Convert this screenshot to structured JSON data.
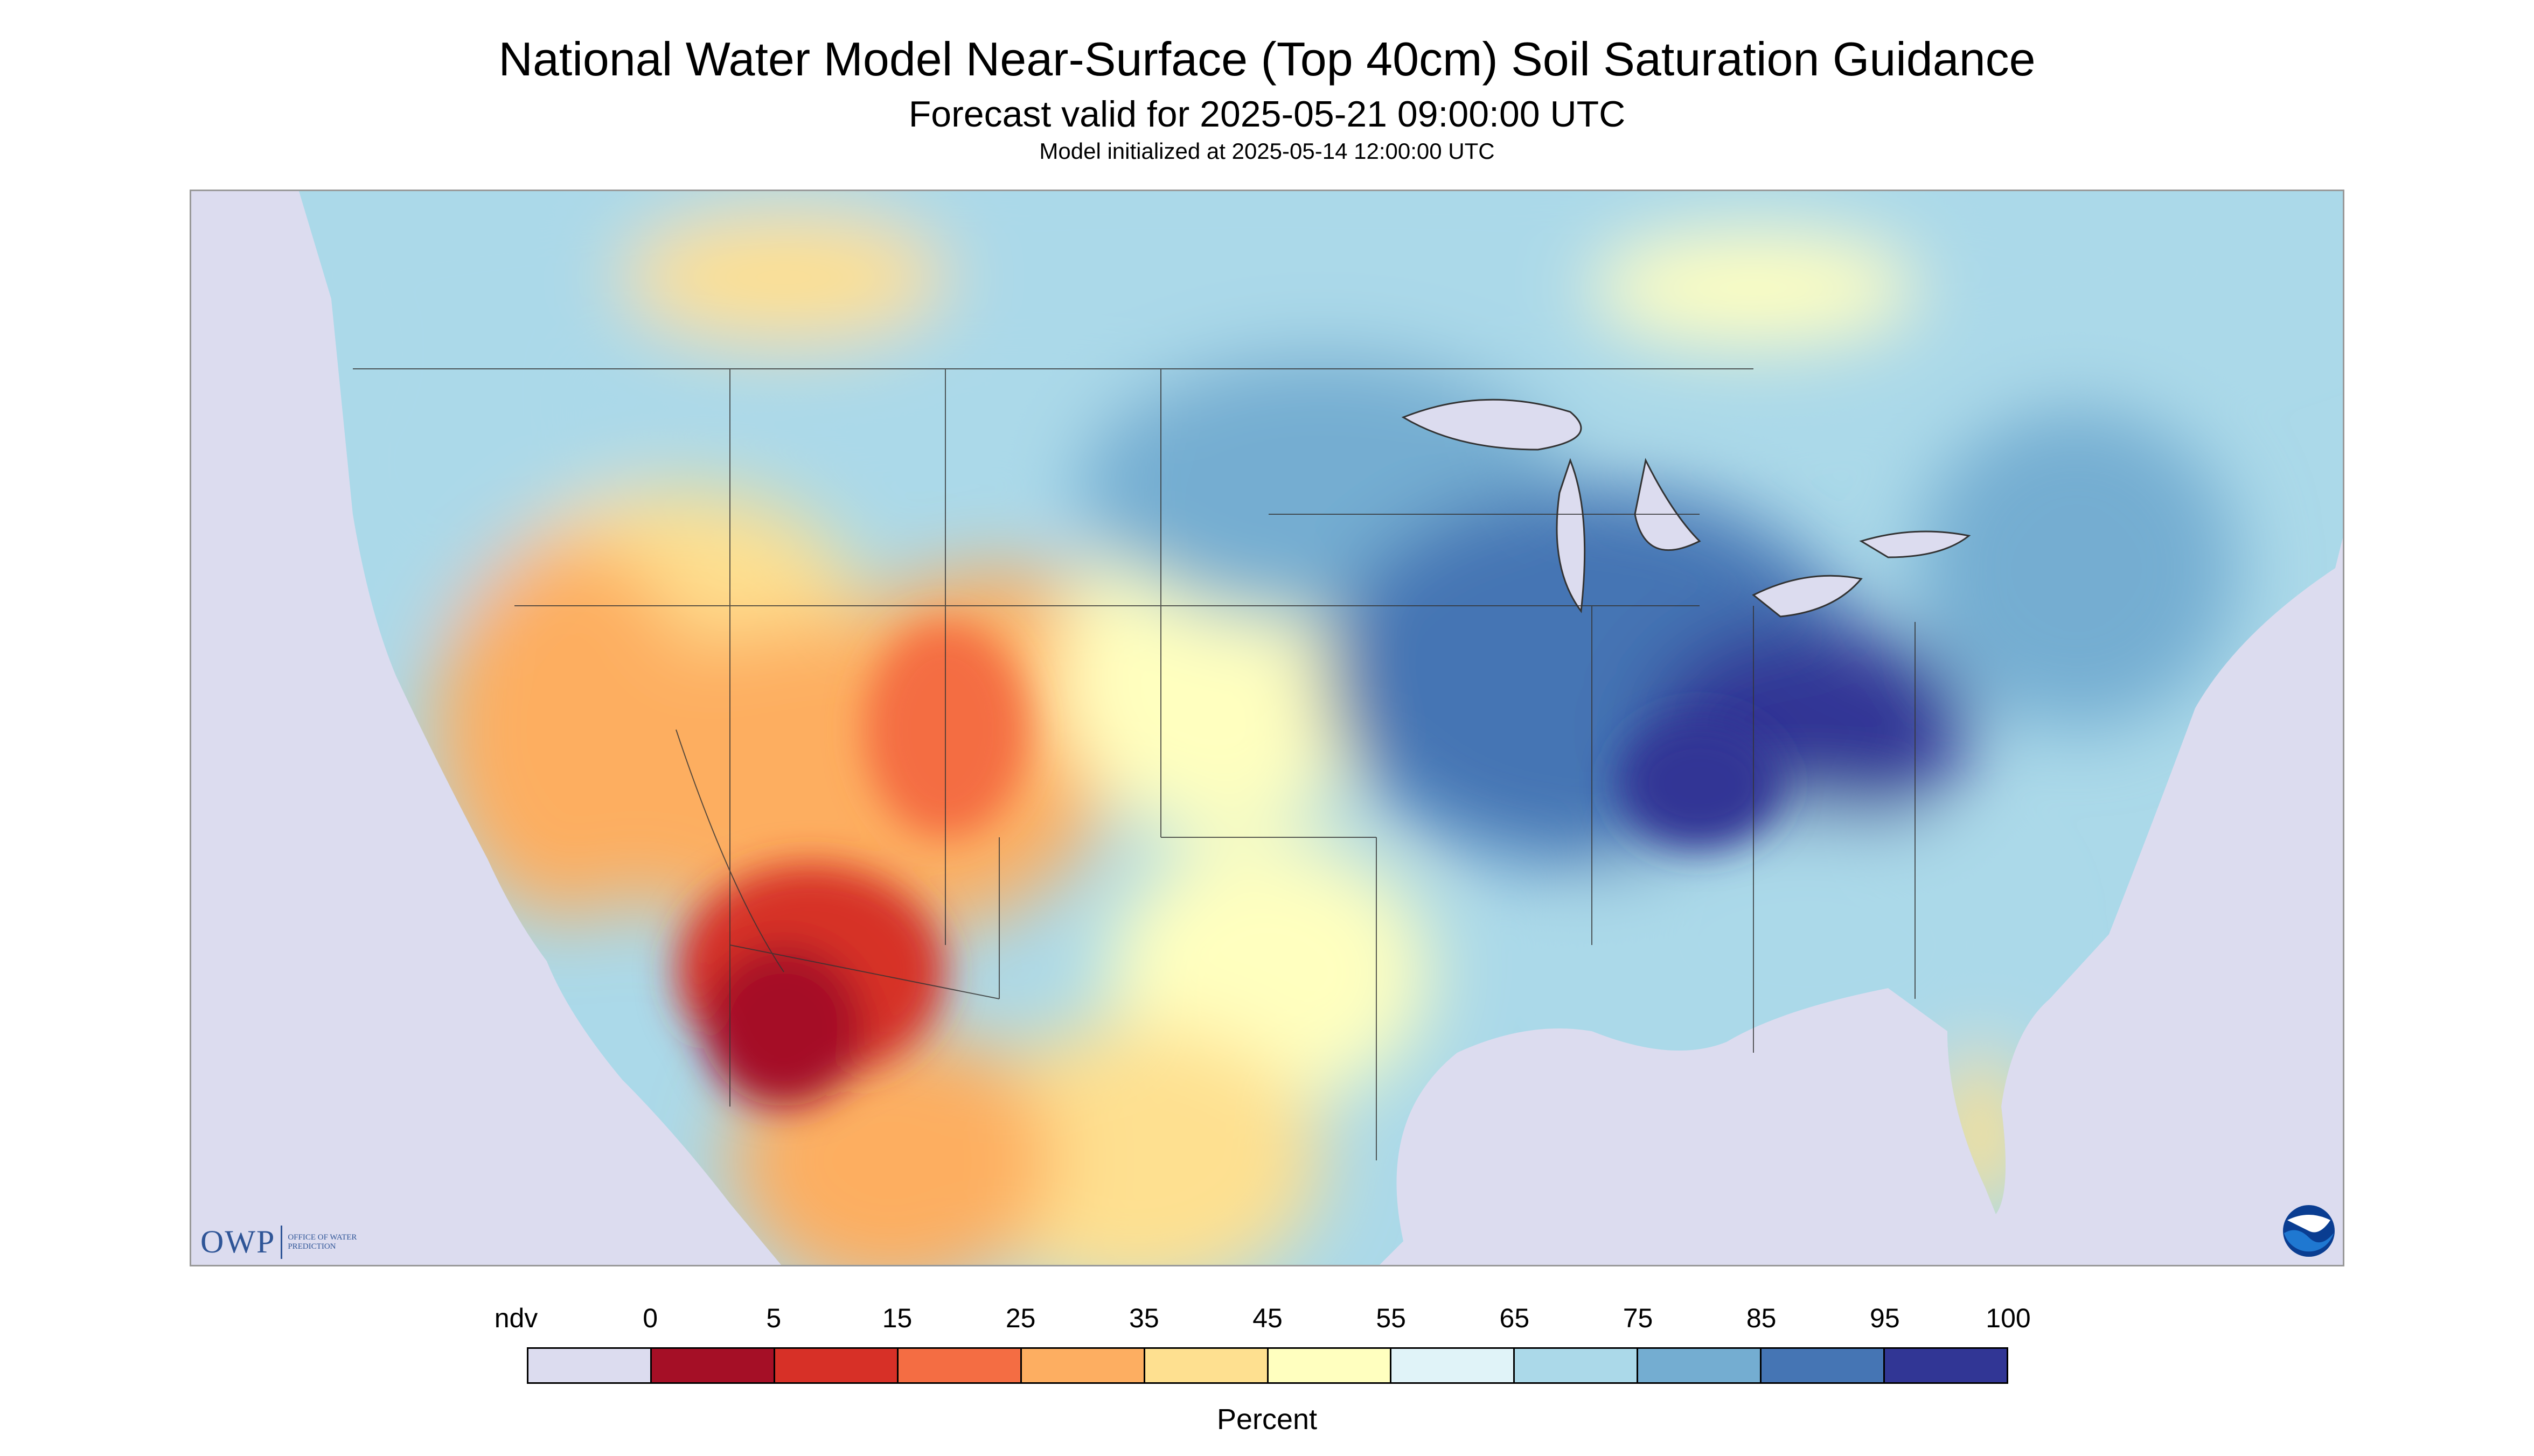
{
  "header": {
    "title": "National Water Model Near-Surface (Top 40cm) Soil Saturation Guidance",
    "subtitle": "Forecast valid for 2025-05-21 09:00:00 UTC",
    "init": "Model initialized at 2025-05-14 12:00:00 UTC"
  },
  "logos": {
    "owp_text": "OWP",
    "owp_subtext": "OFFICE OF WATER PREDICTION",
    "noaa_text": "NOAA"
  },
  "legend": {
    "labels": [
      "ndv",
      "0",
      "5",
      "15",
      "25",
      "35",
      "45",
      "55",
      "65",
      "75",
      "85",
      "95",
      "100"
    ],
    "colors": [
      "#dcdcef",
      "#a50f26",
      "#d73027",
      "#f46d43",
      "#fdae61",
      "#fee090",
      "#ffffbf",
      "#e0f3f8",
      "#abd9e9",
      "#74add1",
      "#4575b4",
      "#313695"
    ],
    "units": "Percent"
  },
  "map": {
    "ocean_color": "#dcdcef",
    "region_values": {
      "canada": 72,
      "pacific_nw": 62,
      "great_basin": 38,
      "southwest": 28,
      "high_plains": 48,
      "northern_plains": 82,
      "midwest": 86,
      "ohio_valley": 92,
      "southeast": 68,
      "northeast": 74,
      "texas": 40,
      "mexico_north": 35,
      "sierra_madre": 12,
      "florida": 48
    }
  }
}
